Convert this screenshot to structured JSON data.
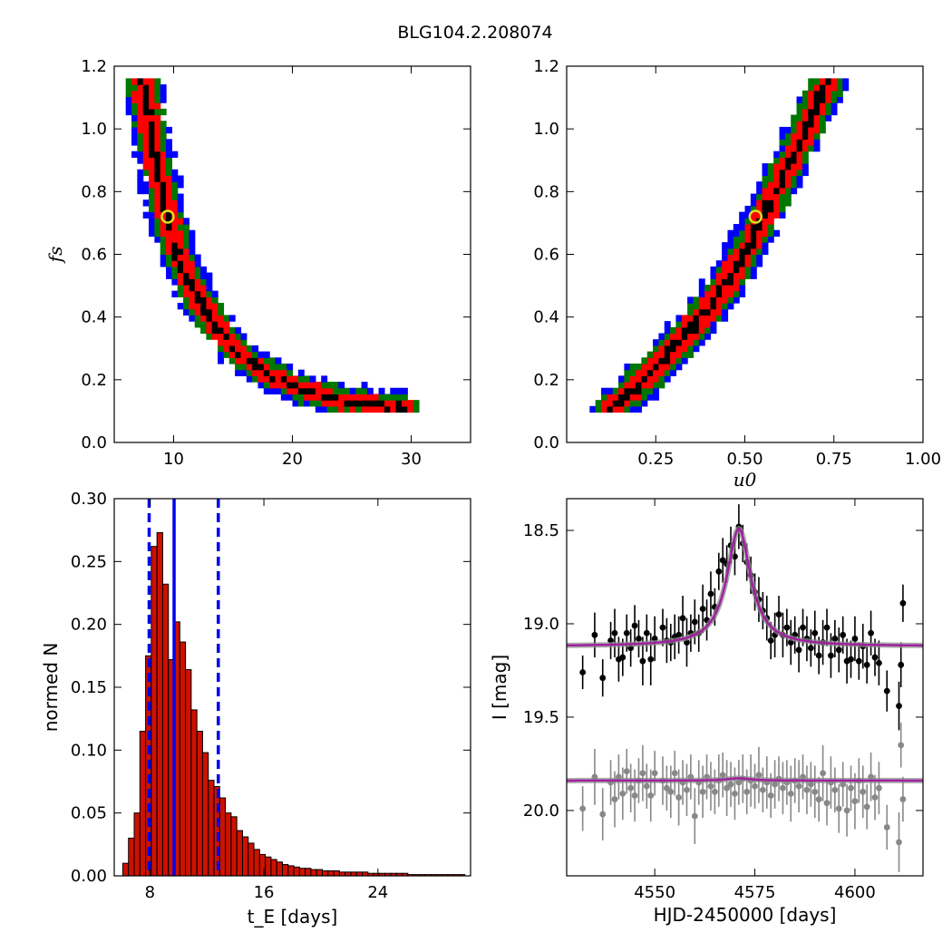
{
  "figure_title": "BLG104.2.208074",
  "chart_data": [
    {
      "id": "fs_vs_tE",
      "type": "heatmap",
      "xlim": [
        5,
        35
      ],
      "ylim": [
        0.0,
        1.2
      ],
      "xticks": [
        10,
        20,
        30
      ],
      "yticks": [
        0.0,
        0.2,
        0.4,
        0.6,
        0.8,
        1.0,
        1.2
      ],
      "xlabel": "",
      "ylabel": "f_s",
      "levels": [
        "black",
        "red",
        "green",
        "blue"
      ],
      "band": [
        [
          7.3,
          1.17
        ],
        [
          7.6,
          1.1
        ],
        [
          8.0,
          1.0
        ],
        [
          8.5,
          0.9
        ],
        [
          9.0,
          0.8
        ],
        [
          9.5,
          0.72
        ],
        [
          10.3,
          0.6
        ],
        [
          11.5,
          0.5
        ],
        [
          13.0,
          0.4
        ],
        [
          15.0,
          0.3
        ],
        [
          18.0,
          0.22
        ],
        [
          21.5,
          0.16
        ],
        [
          25.0,
          0.13
        ],
        [
          29.5,
          0.11
        ]
      ],
      "best_fit": {
        "x": 9.5,
        "y": 0.72,
        "color": "#dddd22"
      }
    },
    {
      "id": "fs_vs_u0",
      "type": "heatmap",
      "xlim": [
        0.0,
        1.0
      ],
      "ylim": [
        0.0,
        1.2
      ],
      "xticks": [
        0.25,
        0.5,
        0.75,
        1.0
      ],
      "xticklabels": [
        "0.25",
        "0.50",
        "0.75",
        "1.00"
      ],
      "yticks": [
        0.0,
        0.2,
        0.4,
        0.6,
        0.8,
        1.0,
        1.2
      ],
      "xlabel": "u_0",
      "ylabel": "",
      "levels": [
        "black",
        "red",
        "green",
        "blue"
      ],
      "band": [
        [
          0.12,
          0.1
        ],
        [
          0.18,
          0.16
        ],
        [
          0.25,
          0.24
        ],
        [
          0.33,
          0.34
        ],
        [
          0.4,
          0.43
        ],
        [
          0.47,
          0.55
        ],
        [
          0.53,
          0.67
        ],
        [
          0.58,
          0.79
        ],
        [
          0.64,
          0.92
        ],
        [
          0.69,
          1.05
        ],
        [
          0.74,
          1.17
        ]
      ],
      "best_fit": {
        "x": 0.53,
        "y": 0.72,
        "color": "#dddd22"
      }
    },
    {
      "id": "tE_histogram",
      "type": "bar",
      "xlim": [
        5.5,
        30.5
      ],
      "ylim": [
        0.0,
        0.3
      ],
      "xticks": [
        8,
        16,
        24
      ],
      "yticks": [
        0.0,
        0.05,
        0.1,
        0.15,
        0.2,
        0.25,
        0.3
      ],
      "yticklabels": [
        "0.00",
        "0.05",
        "0.10",
        "0.15",
        "0.20",
        "0.25",
        "0.30"
      ],
      "xlabel": "t_E [days]",
      "ylabel": "normed N",
      "bin_start": 5.7,
      "bin_width": 0.4,
      "values": [
        0.0,
        0.01,
        0.03,
        0.05,
        0.115,
        0.175,
        0.262,
        0.273,
        0.232,
        0.172,
        0.202,
        0.186,
        0.164,
        0.132,
        0.115,
        0.098,
        0.076,
        0.071,
        0.062,
        0.05,
        0.047,
        0.036,
        0.031,
        0.026,
        0.021,
        0.017,
        0.015,
        0.013,
        0.011,
        0.009,
        0.008,
        0.007,
        0.006,
        0.006,
        0.005,
        0.005,
        0.004,
        0.004,
        0.004,
        0.003,
        0.003,
        0.003,
        0.003,
        0.003,
        0.002,
        0.002,
        0.002,
        0.002,
        0.002,
        0.002,
        0.002,
        0.001,
        0.001,
        0.001,
        0.001,
        0.001,
        0.001,
        0.001,
        0.001,
        0.001,
        0.001
      ],
      "vlines": [
        {
          "x": 7.95,
          "style": "dashed"
        },
        {
          "x": 9.7,
          "style": "solid"
        },
        {
          "x": 12.8,
          "style": "dashed"
        }
      ],
      "bar_color": "#cc1100",
      "line_color": "#0000ee"
    },
    {
      "id": "lightcurve",
      "type": "scatter",
      "xlim": [
        4528,
        4617
      ],
      "ylim": [
        20.35,
        18.33
      ],
      "xticks": [
        4550,
        4575,
        4600
      ],
      "yticks": [
        18.5,
        19.0,
        19.5,
        20.0
      ],
      "xlabel": "HJD-2450000 [days]",
      "ylabel": "I [mag]",
      "model": {
        "t0": 4571,
        "peak": 18.49,
        "baseline": 19.12,
        "width": 3.6
      },
      "model_color": "#a020a0",
      "series": [
        {
          "color": "#000000",
          "points": [
            [
              4532,
              19.26,
              0.09
            ],
            [
              4535,
              19.06,
              0.12
            ],
            [
              4537,
              19.29,
              0.1
            ],
            [
              4539,
              19.09,
              0.1
            ],
            [
              4540,
              19.05,
              0.13
            ],
            [
              4541,
              19.19,
              0.12
            ],
            [
              4542,
              19.18,
              0.1
            ],
            [
              4543,
              19.05,
              0.1
            ],
            [
              4544,
              19.13,
              0.1
            ],
            [
              4545,
              19.01,
              0.11
            ],
            [
              4546,
              19.08,
              0.1
            ],
            [
              4547,
              19.2,
              0.13
            ],
            [
              4548,
              19.05,
              0.1
            ],
            [
              4549,
              19.19,
              0.14
            ],
            [
              4550,
              19.08,
              0.12
            ],
            [
              4552,
              19.02,
              0.1
            ],
            [
              4553,
              19.09,
              0.12
            ],
            [
              4554,
              19.1,
              0.1
            ],
            [
              4555,
              19.07,
              0.12
            ],
            [
              4556,
              19.06,
              0.1
            ],
            [
              4557,
              18.97,
              0.12
            ],
            [
              4558,
              19.1,
              0.13
            ],
            [
              4559,
              19.05,
              0.1
            ],
            [
              4560,
              18.99,
              0.12
            ],
            [
              4561,
              19.05,
              0.1
            ],
            [
              4562,
              18.92,
              0.13
            ],
            [
              4563,
              18.98,
              0.11
            ],
            [
              4564,
              18.84,
              0.12
            ],
            [
              4565,
              18.91,
              0.1
            ],
            [
              4566,
              18.72,
              0.1
            ],
            [
              4567,
              18.66,
              0.12
            ],
            [
              4568,
              18.68,
              0.1
            ],
            [
              4569,
              18.58,
              0.1
            ],
            [
              4570,
              18.64,
              0.1
            ],
            [
              4571,
              18.48,
              0.12
            ],
            [
              4572,
              18.57,
              0.1
            ],
            [
              4573,
              18.67,
              0.1
            ],
            [
              4574,
              18.74,
              0.1
            ],
            [
              4575,
              18.83,
              0.1
            ],
            [
              4576,
              18.87,
              0.12
            ],
            [
              4577,
              18.93,
              0.1
            ],
            [
              4578,
              18.97,
              0.12
            ],
            [
              4579,
              19.09,
              0.1
            ],
            [
              4580,
              19.06,
              0.12
            ],
            [
              4581,
              18.95,
              0.1
            ],
            [
              4582,
              19.06,
              0.12
            ],
            [
              4583,
              19.02,
              0.1
            ],
            [
              4584,
              19.1,
              0.12
            ],
            [
              4585,
              19.06,
              0.1
            ],
            [
              4586,
              19.14,
              0.12
            ],
            [
              4587,
              19.02,
              0.1
            ],
            [
              4588,
              19.08,
              0.12
            ],
            [
              4589,
              19.13,
              0.1
            ],
            [
              4590,
              19.05,
              0.12
            ],
            [
              4591,
              19.17,
              0.1
            ],
            [
              4592,
              19.1,
              0.12
            ],
            [
              4593,
              19.02,
              0.1
            ],
            [
              4594,
              19.17,
              0.12
            ],
            [
              4595,
              19.08,
              0.1
            ],
            [
              4596,
              19.14,
              0.12
            ],
            [
              4597,
              19.06,
              0.1
            ],
            [
              4598,
              19.2,
              0.12
            ],
            [
              4599,
              19.19,
              0.1
            ],
            [
              4600,
              19.08,
              0.12
            ],
            [
              4601,
              19.2,
              0.1
            ],
            [
              4602,
              19.12,
              0.12
            ],
            [
              4603,
              19.22,
              0.1
            ],
            [
              4604,
              19.05,
              0.12
            ],
            [
              4605,
              19.18,
              0.1
            ],
            [
              4606,
              19.21,
              0.12
            ],
            [
              4608,
              19.36,
              0.11
            ],
            [
              4611,
              19.44,
              0.13
            ],
            [
              4611.5,
              19.22,
              0.12
            ],
            [
              4612,
              18.89,
              0.1
            ]
          ]
        },
        {
          "color": "#888888",
          "points": [
            [
              4532,
              19.99,
              0.12
            ],
            [
              4535,
              19.82,
              0.15
            ],
            [
              4537,
              20.02,
              0.14
            ],
            [
              4539,
              19.85,
              0.12
            ],
            [
              4540,
              19.94,
              0.15
            ],
            [
              4541,
              19.82,
              0.12
            ],
            [
              4542,
              19.91,
              0.14
            ],
            [
              4543,
              19.79,
              0.12
            ],
            [
              4544,
              19.88,
              0.13
            ],
            [
              4545,
              19.92,
              0.14
            ],
            [
              4546,
              19.84,
              0.12
            ],
            [
              4547,
              19.8,
              0.15
            ],
            [
              4548,
              19.87,
              0.12
            ],
            [
              4549,
              19.92,
              0.14
            ],
            [
              4550,
              19.8,
              0.12
            ],
            [
              4552,
              19.84,
              0.13
            ],
            [
              4553,
              19.88,
              0.12
            ],
            [
              4554,
              19.9,
              0.14
            ],
            [
              4555,
              19.8,
              0.12
            ],
            [
              4556,
              19.93,
              0.15
            ],
            [
              4557,
              19.85,
              0.12
            ],
            [
              4558,
              19.89,
              0.14
            ],
            [
              4559,
              19.82,
              0.12
            ],
            [
              4560,
              20.03,
              0.15
            ],
            [
              4561,
              19.85,
              0.12
            ],
            [
              4562,
              19.9,
              0.14
            ],
            [
              4563,
              19.82,
              0.12
            ],
            [
              4564,
              19.87,
              0.13
            ],
            [
              4565,
              19.9,
              0.12
            ],
            [
              4566,
              19.84,
              0.14
            ],
            [
              4567,
              19.81,
              0.12
            ],
            [
              4568,
              19.88,
              0.15
            ],
            [
              4569,
              19.86,
              0.12
            ],
            [
              4570,
              19.91,
              0.14
            ],
            [
              4571,
              19.85,
              0.12
            ],
            [
              4572,
              19.83,
              0.13
            ],
            [
              4573,
              19.9,
              0.12
            ],
            [
              4574,
              19.84,
              0.14
            ],
            [
              4575,
              19.87,
              0.12
            ],
            [
              4576,
              19.81,
              0.15
            ],
            [
              4577,
              19.89,
              0.12
            ],
            [
              4578,
              19.85,
              0.14
            ],
            [
              4579,
              19.92,
              0.12
            ],
            [
              4580,
              19.86,
              0.13
            ],
            [
              4581,
              19.83,
              0.12
            ],
            [
              4582,
              19.88,
              0.14
            ],
            [
              4583,
              19.85,
              0.12
            ],
            [
              4584,
              19.91,
              0.15
            ],
            [
              4585,
              19.84,
              0.12
            ],
            [
              4586,
              19.87,
              0.14
            ],
            [
              4587,
              19.82,
              0.12
            ],
            [
              4588,
              19.89,
              0.13
            ],
            [
              4589,
              19.86,
              0.12
            ],
            [
              4590,
              19.9,
              0.14
            ],
            [
              4591,
              19.94,
              0.12
            ],
            [
              4592,
              19.8,
              0.15
            ],
            [
              4593,
              19.96,
              0.12
            ],
            [
              4594,
              19.85,
              0.14
            ],
            [
              4595,
              19.89,
              0.12
            ],
            [
              4596,
              19.99,
              0.13
            ],
            [
              4597,
              19.86,
              0.12
            ],
            [
              4598,
              20.0,
              0.14
            ],
            [
              4599,
              19.88,
              0.12
            ],
            [
              4600,
              19.95,
              0.15
            ],
            [
              4601,
              19.84,
              0.12
            ],
            [
              4602,
              19.9,
              0.14
            ],
            [
              4603,
              19.98,
              0.12
            ],
            [
              4604,
              19.82,
              0.13
            ],
            [
              4605,
              19.93,
              0.12
            ],
            [
              4606,
              19.88,
              0.14
            ],
            [
              4608,
              20.09,
              0.12
            ],
            [
              4611,
              20.17,
              0.16
            ],
            [
              4611.5,
              19.65,
              0.12
            ],
            [
              4612,
              19.94,
              0.12
            ]
          ]
        }
      ]
    }
  ]
}
